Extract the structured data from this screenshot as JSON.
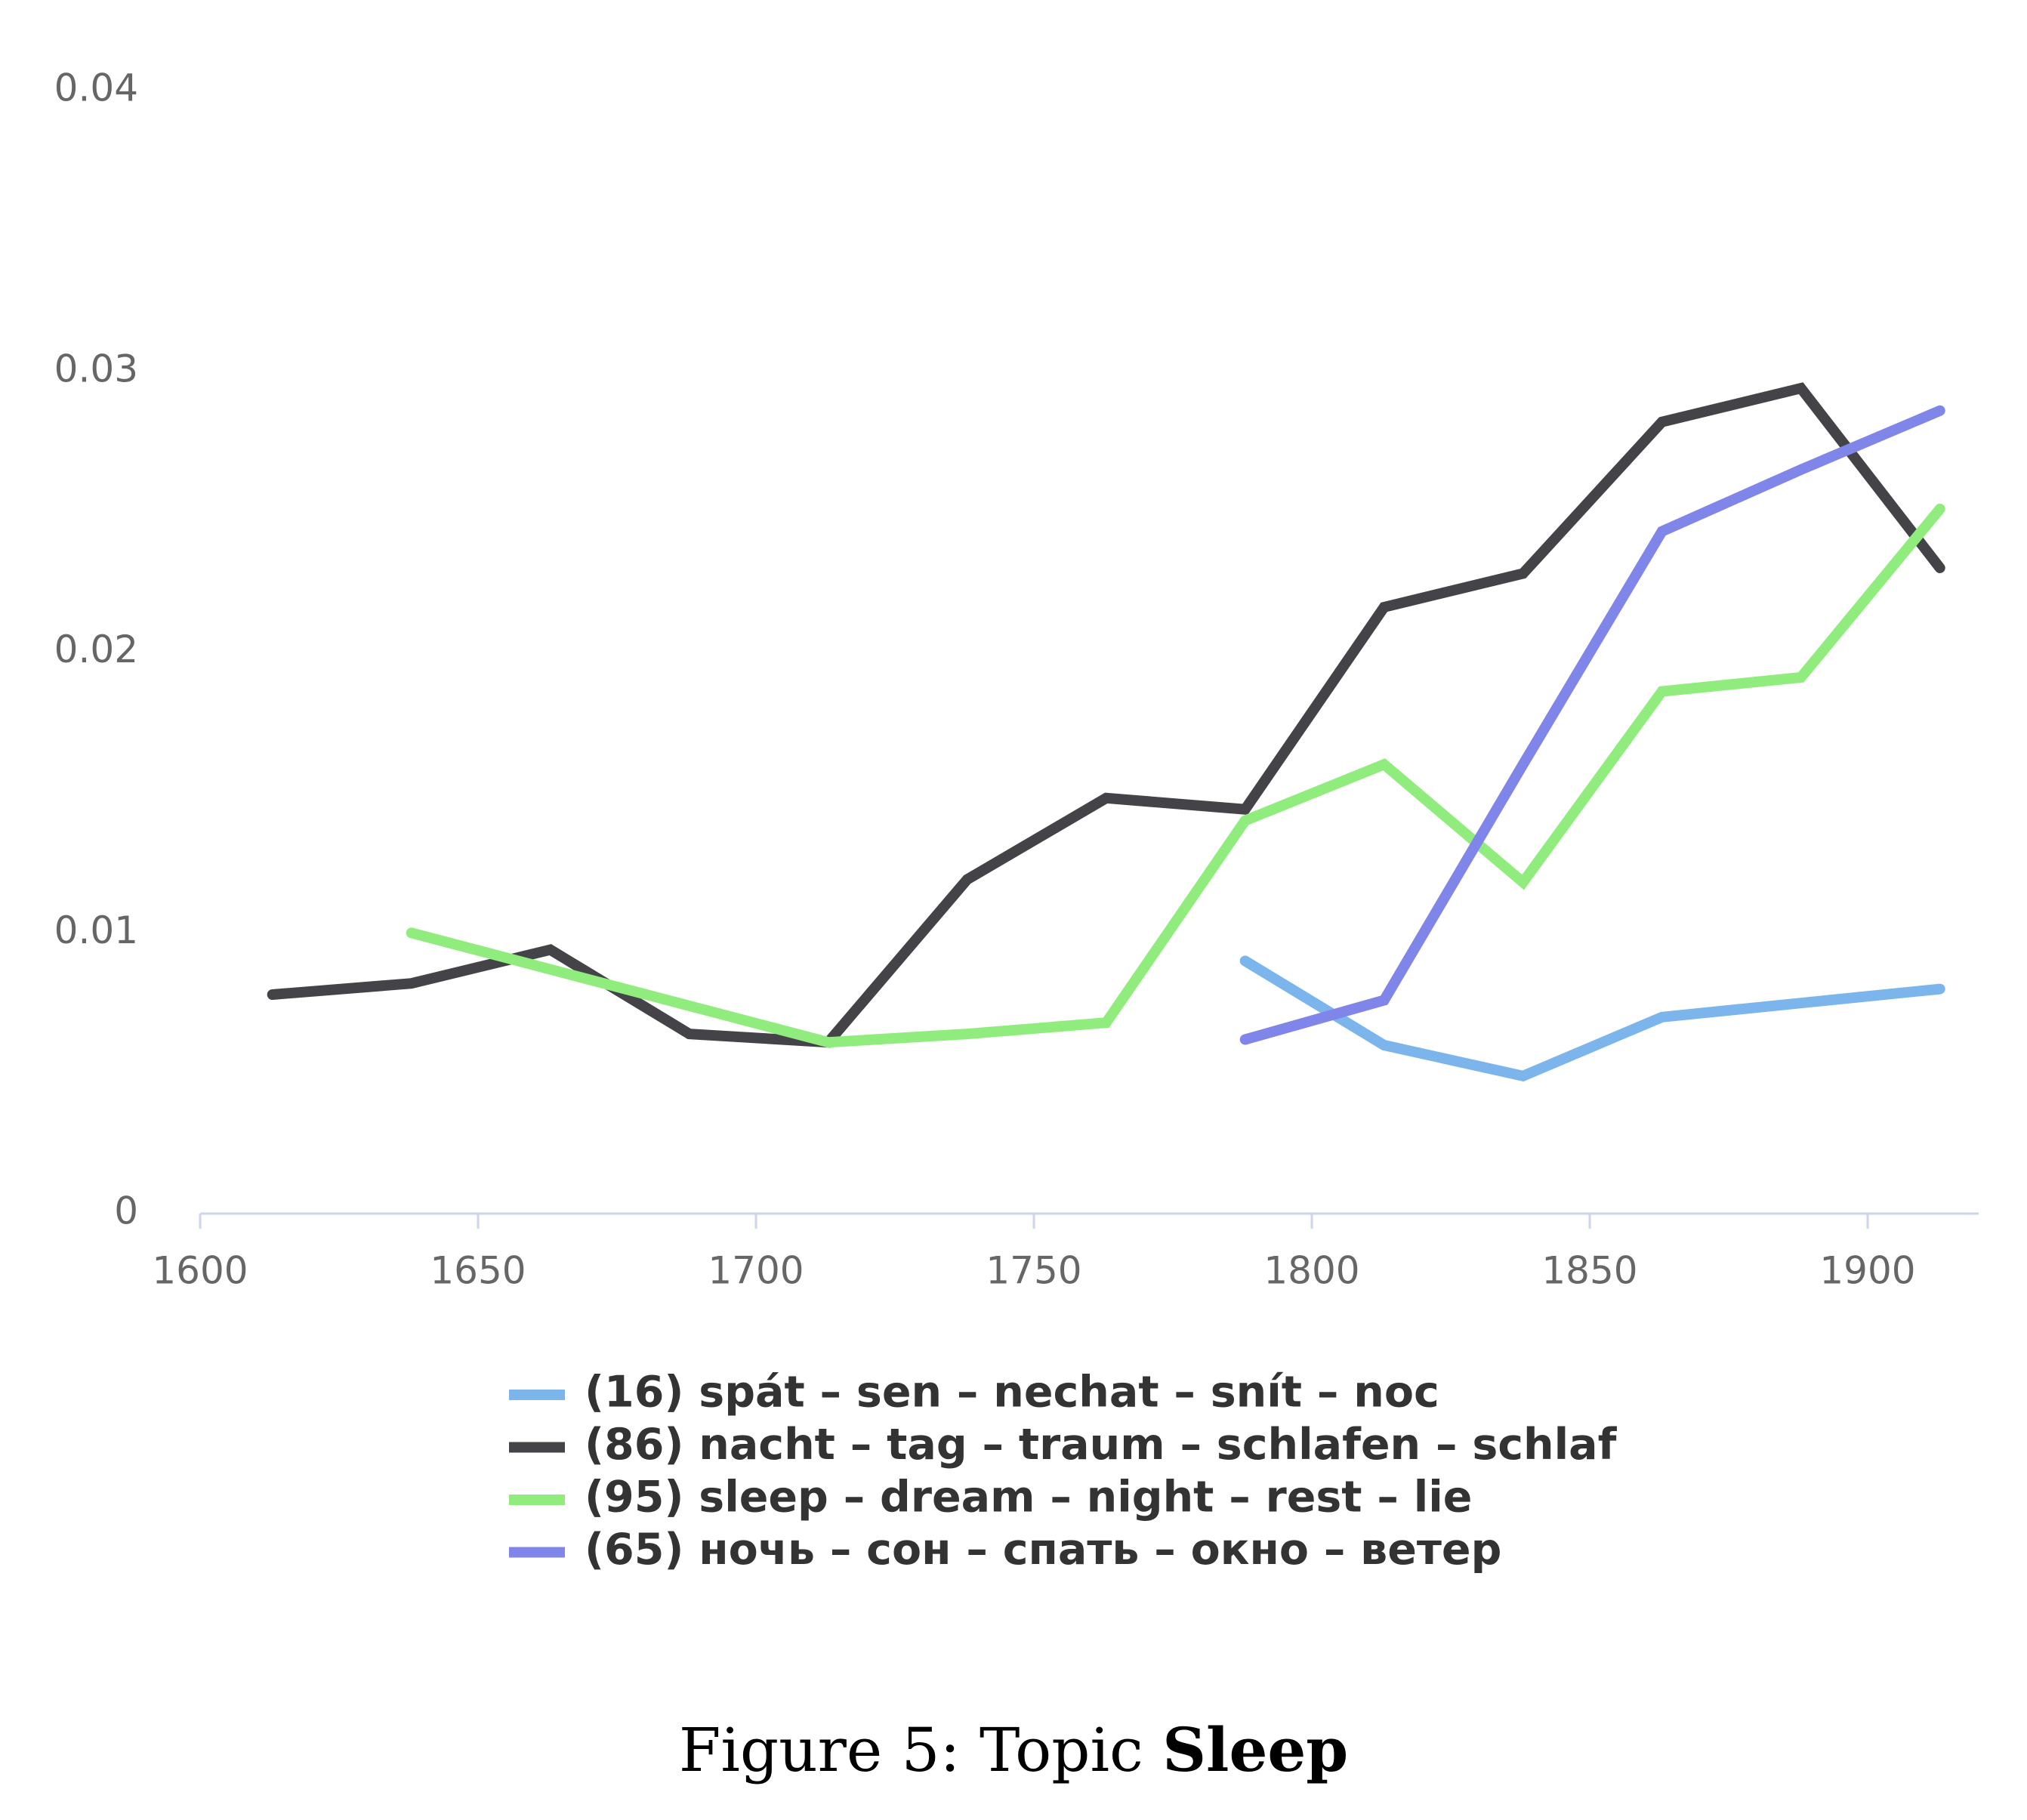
{
  "chart_data": {
    "type": "line",
    "x_ticks": [
      "1600",
      "1650",
      "1700",
      "1750",
      "1800",
      "1850",
      "1900"
    ],
    "y_ticks": [
      "0",
      "0.01",
      "0.02",
      "0.03",
      "0.04"
    ],
    "xlim": [
      1600,
      1920
    ],
    "ylim": [
      0,
      0.04
    ],
    "grid": false,
    "legend_position": "bottom",
    "series": [
      {
        "name": "(16) spát – sen – nechat – snít – noc",
        "color": "#7cb5ec",
        "points": [
          [
            1788,
            0.009
          ],
          [
            1813,
            0.006
          ],
          [
            1838,
            0.0049
          ],
          [
            1863,
            0.007
          ],
          [
            1888,
            0.0075
          ],
          [
            1913,
            0.008
          ]
        ]
      },
      {
        "name": "(86) nacht – tag – traum – schlafen – schlaf",
        "color": "#434348",
        "points": [
          [
            1613,
            0.0078
          ],
          [
            1638,
            0.0082
          ],
          [
            1663,
            0.0094
          ],
          [
            1688,
            0.0064
          ],
          [
            1713,
            0.0061
          ],
          [
            1738,
            0.0119
          ],
          [
            1763,
            0.0148
          ],
          [
            1788,
            0.0144
          ],
          [
            1813,
            0.0216
          ],
          [
            1838,
            0.0228
          ],
          [
            1863,
            0.0282
          ],
          [
            1888,
            0.0294
          ],
          [
            1913,
            0.023
          ]
        ]
      },
      {
        "name": "(95) sleep – dream – night – rest – lie",
        "color": "#90ed7d",
        "points": [
          [
            1638,
            0.01
          ],
          [
            1663,
            0.0087
          ],
          [
            1688,
            0.0074
          ],
          [
            1713,
            0.0061
          ],
          [
            1738,
            0.0064
          ],
          [
            1763,
            0.0068
          ],
          [
            1788,
            0.014
          ],
          [
            1813,
            0.016
          ],
          [
            1838,
            0.0118
          ],
          [
            1863,
            0.0186
          ],
          [
            1888,
            0.0191
          ],
          [
            1913,
            0.0251
          ]
        ]
      },
      {
        "name": "(65) ночь – сон – спать – окно – ветер",
        "color": "#8085e9",
        "points": [
          [
            1788,
            0.0062
          ],
          [
            1813,
            0.0076
          ],
          [
            1838,
            0.016
          ],
          [
            1863,
            0.0243
          ],
          [
            1888,
            0.0265
          ],
          [
            1913,
            0.0286
          ]
        ]
      }
    ]
  },
  "caption": {
    "prefix": "Figure 5: Topic ",
    "bold": "Sleep"
  }
}
